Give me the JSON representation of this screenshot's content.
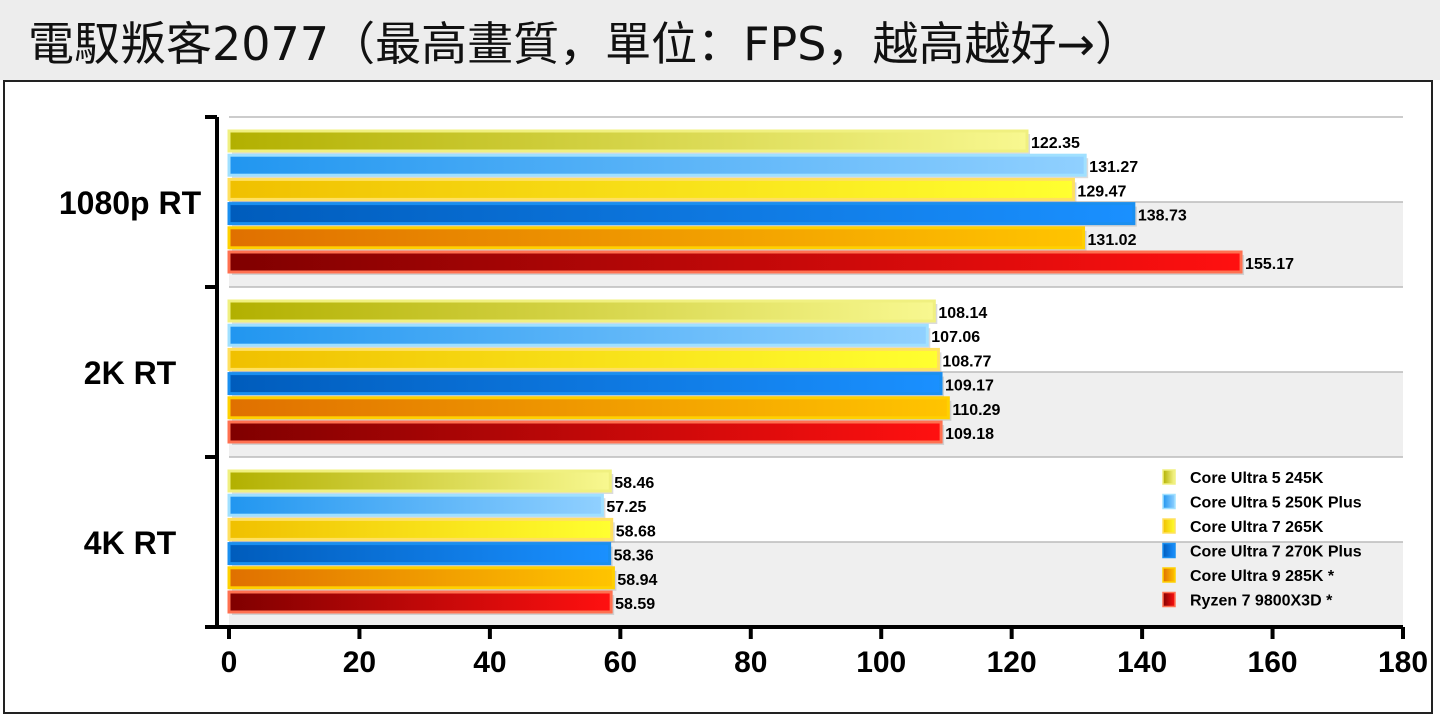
{
  "chart_data": {
    "type": "bar",
    "orientation": "horizontal",
    "title": "電馭叛客2077（最高畫質，單位：FPS，越高越好→）",
    "categories": [
      "1080p RT",
      "2K RT",
      "4K RT"
    ],
    "xlim": [
      0,
      180
    ],
    "xticks": [
      0,
      20,
      40,
      60,
      80,
      100,
      120,
      140,
      160,
      180
    ],
    "grid": true,
    "legend_position": "bottom-right",
    "series": [
      {
        "name": "Core Ultra 5 245K",
        "values": [
          122.35,
          108.14,
          58.46
        ],
        "color_dark": "#b2b000",
        "color_light": "#f8f890",
        "border": "#f0f080"
      },
      {
        "name": "Core Ultra 5 250K Plus",
        "values": [
          131.27,
          107.06,
          57.25
        ],
        "color_dark": "#2196f0",
        "color_light": "#90d0ff",
        "border": "#a0e0ff"
      },
      {
        "name": "Core Ultra 7 265K",
        "values": [
          129.47,
          108.77,
          58.68
        ],
        "color_dark": "#f0c000",
        "color_light": "#ffff30",
        "border": "#ffe060"
      },
      {
        "name": "Core Ultra 7 270K Plus",
        "values": [
          138.73,
          109.17,
          58.36
        ],
        "color_dark": "#005cbc",
        "color_light": "#1a90ff",
        "border": "#1a8ff0"
      },
      {
        "name": "Core Ultra 9 285K *",
        "values": [
          131.02,
          110.29,
          58.94
        ],
        "color_dark": "#e07000",
        "color_light": "#ffc400",
        "border": "#ffd000"
      },
      {
        "name": "Ryzen 7 9800X3D *",
        "values": [
          155.17,
          109.18,
          58.59
        ],
        "color_dark": "#800000",
        "color_light": "#ff1010",
        "border": "#ff7050"
      }
    ]
  }
}
